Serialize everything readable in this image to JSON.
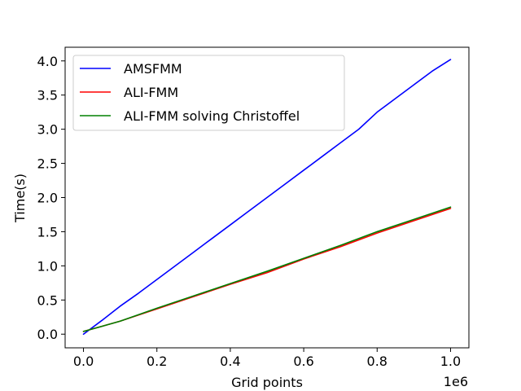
{
  "chart_data": {
    "type": "line",
    "title": "",
    "xlabel": "Grid points",
    "ylabel": "Time(s)",
    "x_offset_text": "1e6",
    "xlim": [
      -0.05,
      1.05
    ],
    "ylim": [
      -0.2,
      4.2
    ],
    "x_ticks": [
      0.0,
      0.2,
      0.4,
      0.6,
      0.8,
      1.0
    ],
    "x_tick_labels": [
      "0.0",
      "0.2",
      "0.4",
      "0.6",
      "0.8",
      "1.0"
    ],
    "y_ticks": [
      0.0,
      0.5,
      1.0,
      1.5,
      2.0,
      2.5,
      3.0,
      3.5,
      4.0
    ],
    "y_tick_labels": [
      "0.0",
      "0.5",
      "1.0",
      "1.5",
      "2.0",
      "2.5",
      "3.0",
      "3.5",
      "4.0"
    ],
    "grid": false,
    "legend_position": "upper left",
    "series": [
      {
        "name": "AMSFMM",
        "color": "#0000ff",
        "x": [
          0.0,
          0.05,
          0.1,
          0.15,
          0.2,
          0.25,
          0.3,
          0.35,
          0.4,
          0.45,
          0.5,
          0.55,
          0.6,
          0.65,
          0.7,
          0.75,
          0.8,
          0.85,
          0.9,
          0.95,
          1.0
        ],
        "y": [
          0.0,
          0.2,
          0.41,
          0.6,
          0.8,
          1.0,
          1.2,
          1.4,
          1.6,
          1.8,
          2.0,
          2.2,
          2.4,
          2.6,
          2.8,
          3.0,
          3.25,
          3.45,
          3.65,
          3.85,
          4.02
        ]
      },
      {
        "name": "ALI-FMM",
        "color": "#ff0000",
        "x": [
          0.0,
          0.1,
          0.2,
          0.3,
          0.4,
          0.5,
          0.6,
          0.7,
          0.8,
          0.9,
          1.0
        ],
        "y": [
          0.04,
          0.19,
          0.37,
          0.55,
          0.73,
          0.9,
          1.1,
          1.28,
          1.48,
          1.66,
          1.84
        ]
      },
      {
        "name": "ALI-FMM solving Christoffel",
        "color": "#008000",
        "x": [
          0.0,
          0.1,
          0.2,
          0.3,
          0.4,
          0.5,
          0.6,
          0.7,
          0.8,
          0.9,
          1.0
        ],
        "y": [
          0.04,
          0.19,
          0.38,
          0.56,
          0.74,
          0.92,
          1.11,
          1.3,
          1.5,
          1.68,
          1.86
        ]
      }
    ]
  }
}
